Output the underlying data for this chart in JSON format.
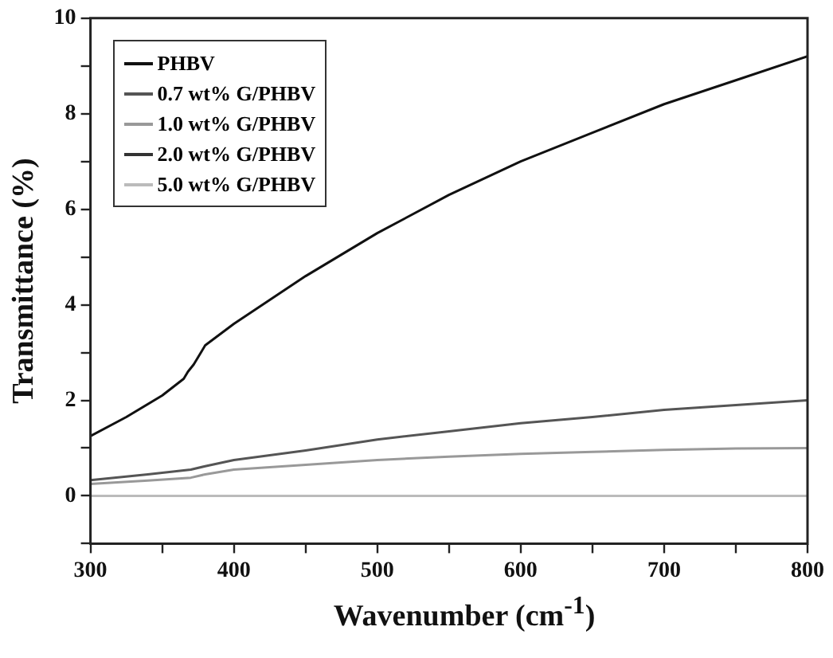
{
  "chart_data": {
    "type": "line",
    "xlabel": "Wavenumber (cm$^{-1}$)",
    "ylabel": "Transmittance (%)",
    "xlim": [
      300,
      800
    ],
    "xticks": [
      300,
      {
        "value": 350,
        "label": null
      },
      400,
      {
        "value": 450,
        "label": null
      },
      500,
      {
        "value": 550,
        "label": null
      },
      600,
      {
        "value": 650,
        "label": null
      },
      700,
      {
        "value": 750,
        "label": null
      },
      800
    ],
    "ylim": [
      -1,
      10
    ],
    "yticks": [
      {
        "value": -1,
        "label": null
      },
      0,
      {
        "value": 1,
        "label": null
      },
      2,
      {
        "value": 3,
        "label": null
      },
      4,
      {
        "value": 5,
        "label": null
      },
      6,
      {
        "value": 7,
        "label": null
      },
      8,
      {
        "value": 9,
        "label": null
      },
      10
    ],
    "grid": false,
    "legend": "top left",
    "marker": "none",
    "line_style": "solid",
    "series": [
      {
        "name": "PHBV",
        "color": "#111111",
        "x": [
          300,
          325,
          350,
          365,
          368,
          372,
          380,
          400,
          425,
          450,
          475,
          500,
          550,
          600,
          650,
          700,
          750,
          800
        ],
        "values": [
          1.25,
          1.65,
          2.1,
          2.45,
          2.6,
          2.75,
          3.15,
          3.6,
          4.1,
          4.6,
          5.05,
          5.5,
          6.3,
          7.0,
          7.6,
          8.2,
          8.7,
          9.2
        ]
      },
      {
        "name": "0.7 wt% G/PHBV",
        "color": "#555555",
        "x": [
          300,
          340,
          370,
          380,
          400,
          450,
          500,
          550,
          600,
          650,
          700,
          750,
          800
        ],
        "values": [
          0.33,
          0.45,
          0.55,
          0.62,
          0.75,
          0.95,
          1.18,
          1.35,
          1.52,
          1.65,
          1.8,
          1.9,
          2.0
        ]
      },
      {
        "name": "1.0 wt% G/PHBV",
        "color": "#999999",
        "x": [
          300,
          340,
          370,
          380,
          400,
          450,
          500,
          550,
          600,
          650,
          700,
          750,
          800
        ],
        "values": [
          0.25,
          0.32,
          0.38,
          0.45,
          0.55,
          0.65,
          0.75,
          0.82,
          0.88,
          0.92,
          0.96,
          0.99,
          1.0
        ]
      },
      {
        "name": "2.0 wt% G/PHBV",
        "color": "#333333"
      },
      {
        "name": "5.0 wt% G/PHBV",
        "color": "#bbbbbb",
        "x": [
          300,
          800
        ],
        "values": [
          0,
          0
        ]
      }
    ]
  }
}
